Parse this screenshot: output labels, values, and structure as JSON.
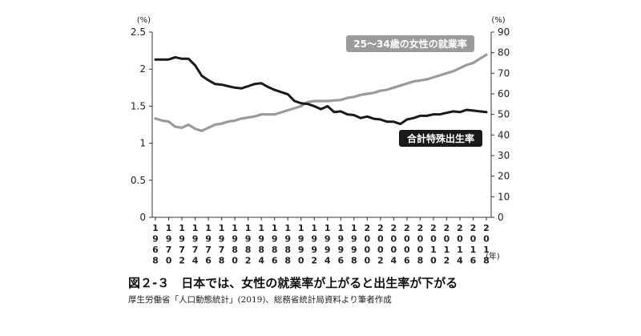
{
  "caption": "図２-３　日本では、女性の就業率が上がると出生率が下がる",
  "source": "厚生労働省「人口動態統計」(2019)、総務省統計局資料より筆者作成",
  "chart_data": {
    "type": "line",
    "y_left": {
      "unit": "(%)",
      "ticks": [
        "0",
        "0.5",
        "1",
        "1.5",
        "2",
        "2.5"
      ],
      "range": [
        0,
        2.5
      ]
    },
    "y_right": {
      "unit": "(%)",
      "ticks": [
        "0",
        "10",
        "20",
        "30",
        "40",
        "50",
        "60",
        "70",
        "80",
        "90"
      ],
      "range": [
        0,
        90
      ]
    },
    "x_unit": "(年)",
    "x_years": [
      1968,
      1969,
      1970,
      1971,
      1972,
      1973,
      1974,
      1975,
      1976,
      1977,
      1978,
      1979,
      1980,
      1981,
      1982,
      1983,
      1984,
      1985,
      1986,
      1987,
      1988,
      1989,
      1990,
      1991,
      1992,
      1993,
      1994,
      1995,
      1996,
      1997,
      1998,
      1999,
      2000,
      2001,
      2002,
      2003,
      2004,
      2005,
      2006,
      2007,
      2008,
      2009,
      2010,
      2011,
      2012,
      2013,
      2014,
      2015,
      2016,
      2017,
      2018
    ],
    "x_tick_labels": [
      [
        "1",
        "9",
        "6",
        "8"
      ],
      [
        "1",
        "9",
        "7",
        "0"
      ],
      [
        "1",
        "9",
        "7",
        "2"
      ],
      [
        "1",
        "9",
        "7",
        "4"
      ],
      [
        "1",
        "9",
        "7",
        "6"
      ],
      [
        "1",
        "9",
        "7",
        "8"
      ],
      [
        "1",
        "9",
        "8",
        "0"
      ],
      [
        "1",
        "9",
        "8",
        "2"
      ],
      [
        "1",
        "9",
        "8",
        "4"
      ],
      [
        "1",
        "9",
        "8",
        "6"
      ],
      [
        "1",
        "9",
        "8",
        "8"
      ],
      [
        "1",
        "9",
        "9",
        "0"
      ],
      [
        "1",
        "9",
        "9",
        "2"
      ],
      [
        "1",
        "9",
        "9",
        "4"
      ],
      [
        "1",
        "9",
        "9",
        "6"
      ],
      [
        "1",
        "9",
        "9",
        "8"
      ],
      [
        "2",
        "0",
        "0",
        "0"
      ],
      [
        "2",
        "0",
        "0",
        "2"
      ],
      [
        "2",
        "0",
        "0",
        "4"
      ],
      [
        "2",
        "0",
        "0",
        "6"
      ],
      [
        "2",
        "0",
        "0",
        "8"
      ],
      [
        "2",
        "0",
        "1",
        "0"
      ],
      [
        "2",
        "0",
        "1",
        "2"
      ],
      [
        "2",
        "0",
        "1",
        "4"
      ],
      [
        "2",
        "0",
        "1",
        "6"
      ],
      [
        "2",
        "0",
        "1",
        "8"
      ]
    ],
    "series": [
      {
        "name": "合計特殊出生率",
        "axis": "left",
        "color": "#1a1a1a",
        "values": [
          2.13,
          2.13,
          2.13,
          2.16,
          2.14,
          2.14,
          2.05,
          1.91,
          1.85,
          1.8,
          1.79,
          1.77,
          1.75,
          1.74,
          1.77,
          1.8,
          1.81,
          1.76,
          1.72,
          1.69,
          1.66,
          1.57,
          1.54,
          1.53,
          1.5,
          1.46,
          1.5,
          1.42,
          1.43,
          1.39,
          1.38,
          1.34,
          1.36,
          1.33,
          1.32,
          1.29,
          1.29,
          1.26,
          1.32,
          1.34,
          1.37,
          1.37,
          1.39,
          1.39,
          1.41,
          1.43,
          1.42,
          1.45,
          1.44,
          1.43,
          1.42
        ]
      },
      {
        "name": "25〜34歳の女性の就業率",
        "axis": "right",
        "color": "#9b9b9b",
        "values": [
          48.0,
          47.0,
          46.5,
          44.0,
          43.5,
          45.0,
          43.0,
          42.0,
          43.5,
          45.0,
          45.5,
          46.5,
          47.0,
          48.0,
          48.5,
          49.0,
          50.0,
          50.0,
          50.0,
          51.0,
          52.0,
          53.0,
          54.0,
          56.0,
          56.5,
          56.5,
          56.5,
          56.8,
          57.0,
          58.0,
          58.5,
          59.5,
          60.0,
          60.5,
          61.5,
          62.0,
          63.0,
          64.0,
          65.0,
          66.0,
          66.5,
          67.0,
          68.0,
          69.0,
          70.0,
          71.0,
          72.5,
          74.0,
          75.0,
          77.0,
          79.0
        ]
      }
    ]
  }
}
